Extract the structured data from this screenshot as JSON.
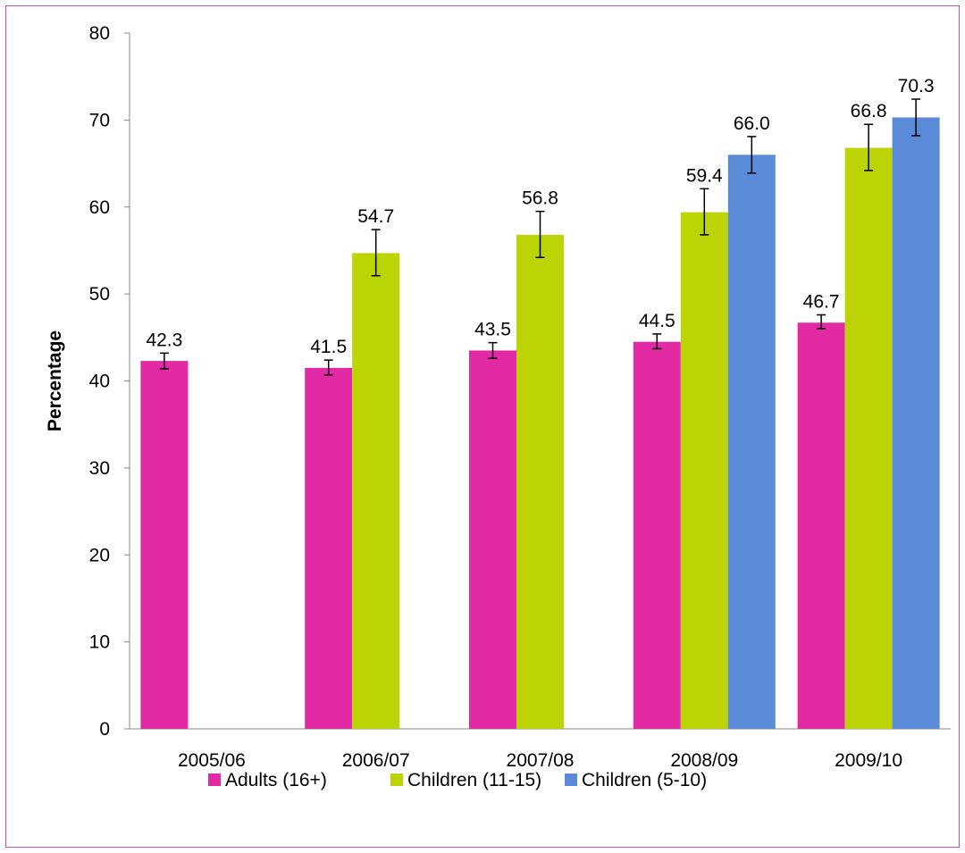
{
  "chart_data": {
    "type": "bar",
    "title": "",
    "xlabel": "",
    "ylabel": "Percentage",
    "ylim": [
      0,
      80
    ],
    "yticks": [
      0,
      10,
      20,
      30,
      40,
      50,
      60,
      70,
      80
    ],
    "grid": false,
    "legend_position": "bottom",
    "categories": [
      "2005/06",
      "2006/07",
      "2007/08",
      "2008/09",
      "2009/10"
    ],
    "series": [
      {
        "name": "Adults (16+)",
        "color": "#e12aa3",
        "values": [
          42.3,
          41.5,
          43.5,
          44.5,
          46.7
        ],
        "labels": [
          "42.3",
          "41.5",
          "43.5",
          "44.5",
          "46.7"
        ],
        "error_low": [
          41.4,
          40.7,
          42.6,
          43.7,
          46.0
        ],
        "error_high": [
          43.2,
          42.4,
          44.4,
          45.4,
          47.6
        ]
      },
      {
        "name": "Children (11-15)",
        "color": "#bcd405",
        "values": [
          null,
          54.7,
          56.8,
          59.4,
          66.8
        ],
        "labels": [
          "",
          "54.7",
          "56.8",
          "59.4",
          "66.8"
        ],
        "error_low": [
          null,
          52.1,
          54.2,
          56.8,
          64.2
        ],
        "error_high": [
          null,
          57.4,
          59.5,
          62.1,
          69.5
        ]
      },
      {
        "name": "Children (5-10)",
        "color": "#5b8ad8",
        "values": [
          null,
          null,
          null,
          66.0,
          70.3
        ],
        "labels": [
          "",
          "",
          "",
          "66.0",
          "70.3"
        ],
        "error_low": [
          null,
          null,
          null,
          63.9,
          68.2
        ],
        "error_high": [
          null,
          null,
          null,
          68.1,
          72.4
        ]
      }
    ]
  }
}
